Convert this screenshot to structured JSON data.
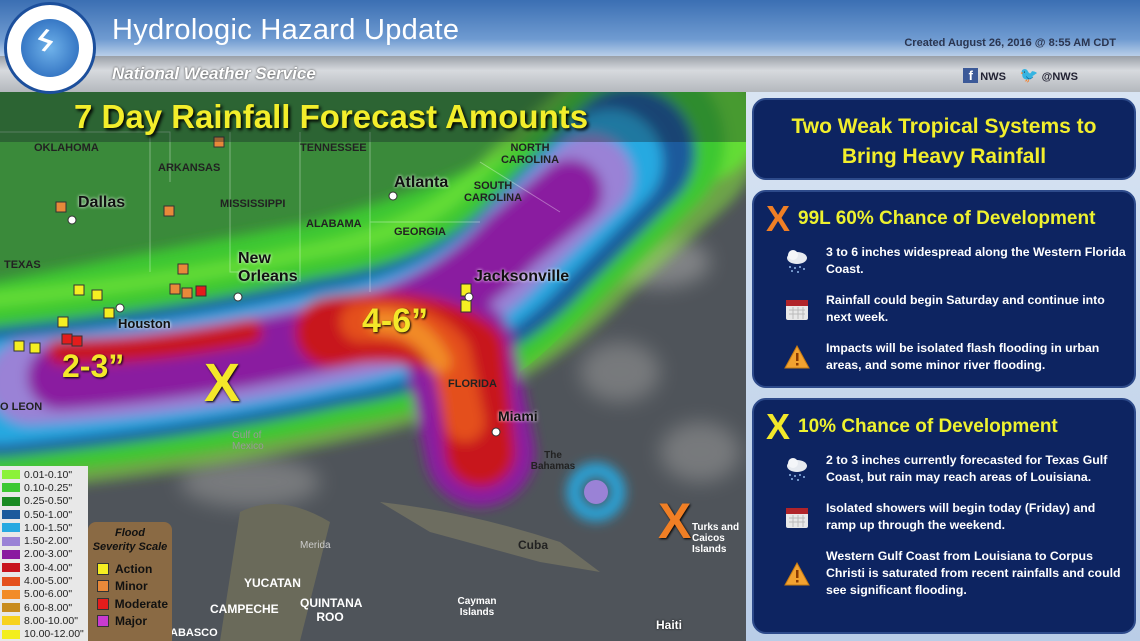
{
  "header": {
    "title": "Hydrologic Hazard Update",
    "subtitle": "National Weather Service",
    "created": "Created August 26, 2016 @ 8:55 AM CDT",
    "facebook": "NWS",
    "twitter": "@NWS",
    "logo_text": "NATIONAL WEATHER SERVICE"
  },
  "map": {
    "title": "7 Day Rainfall Forecast Amounts",
    "region_labels": [
      "OKLAHOMA",
      "TENNESSEE",
      "NORTH CAROLINA",
      "ARKANSAS",
      "SOUTH CAROLINA",
      "MISSISSIPPI",
      "ALABAMA",
      "GEORGIA",
      "TEXAS",
      "FLORIDA",
      "O LEON",
      "Gulf of Mexico",
      "The Bahamas",
      "Cuba",
      "Turks and Caicos Islands",
      "YUCATAN",
      "CAMPECHE",
      "QUINTANA ROO",
      "Cayman Islands",
      "Haiti",
      "ABASCO",
      "Merida"
    ],
    "cities": [
      "Dallas",
      "Atlanta",
      "New Orleans",
      "Houston",
      "Jacksonville",
      "Miami"
    ],
    "amounts": [
      "4-6”",
      "2-3”"
    ],
    "storm_markers": [
      {
        "label": "X",
        "color": "#f2e82a"
      },
      {
        "label": "X",
        "color": "#f07f25"
      }
    ]
  },
  "legend": {
    "items": [
      {
        "label": "0.01-0.10\"",
        "color": "#8cf23a"
      },
      {
        "label": "0.10-0.25\"",
        "color": "#3cc832"
      },
      {
        "label": "0.25-0.50\"",
        "color": "#198a22"
      },
      {
        "label": "0.50-1.00\"",
        "color": "#1c5a9c"
      },
      {
        "label": "1.00-1.50\"",
        "color": "#27a9e1"
      },
      {
        "label": "1.50-2.00\"",
        "color": "#9a82d6"
      },
      {
        "label": "2.00-3.00\"",
        "color": "#8a1aa0"
      },
      {
        "label": "3.00-4.00\"",
        "color": "#c8141e"
      },
      {
        "label": "4.00-5.00\"",
        "color": "#e4501e"
      },
      {
        "label": "5.00-6.00\"",
        "color": "#f28c28"
      },
      {
        "label": "6.00-8.00\"",
        "color": "#c88c1e"
      },
      {
        "label": "8.00-10.00\"",
        "color": "#f7d21e"
      },
      {
        "label": "10.00-12.00\"",
        "color": "#f3ee1e"
      }
    ]
  },
  "flood_scale": {
    "title1": "Flood",
    "title2": "Severity Scale",
    "items": [
      {
        "label": "Action",
        "color": "#f5ee22"
      },
      {
        "label": "Minor",
        "color": "#e8893a"
      },
      {
        "label": "Moderate",
        "color": "#e41c1c"
      },
      {
        "label": "Major",
        "color": "#c93ad0"
      }
    ]
  },
  "panel": {
    "title_line1": "Two Weak Tropical Systems to",
    "title_line2": "Bring Heavy Rainfall",
    "systems": [
      {
        "marker": "X",
        "marker_color": "#f07f25",
        "heading": "99L 60%  Chance of Development",
        "items": [
          {
            "icon": "rain-cloud-icon",
            "text": "3 to 6 inches widespread along the Western Florida Coast."
          },
          {
            "icon": "calendar-icon",
            "text": "Rainfall could begin Saturday and continue into next week."
          },
          {
            "icon": "warning-icon",
            "text": "Impacts will be isolated flash flooding in urban areas, and some minor river flooding."
          }
        ]
      },
      {
        "marker": "X",
        "marker_color": "#f2e82a",
        "heading": "10%  Chance of Development",
        "items": [
          {
            "icon": "rain-cloud-icon",
            "text": "2 to 3 inches currently forecasted for Texas Gulf Coast, but rain may reach areas of Louisiana."
          },
          {
            "icon": "calendar-icon",
            "text": "Isolated showers will begin today (Friday) and ramp up through the weekend."
          },
          {
            "icon": "warning-icon",
            "text": "Western Gulf Coast from Louisiana to Corpus Christi is saturated from recent rainfalls and could see significant flooding."
          }
        ]
      }
    ]
  }
}
